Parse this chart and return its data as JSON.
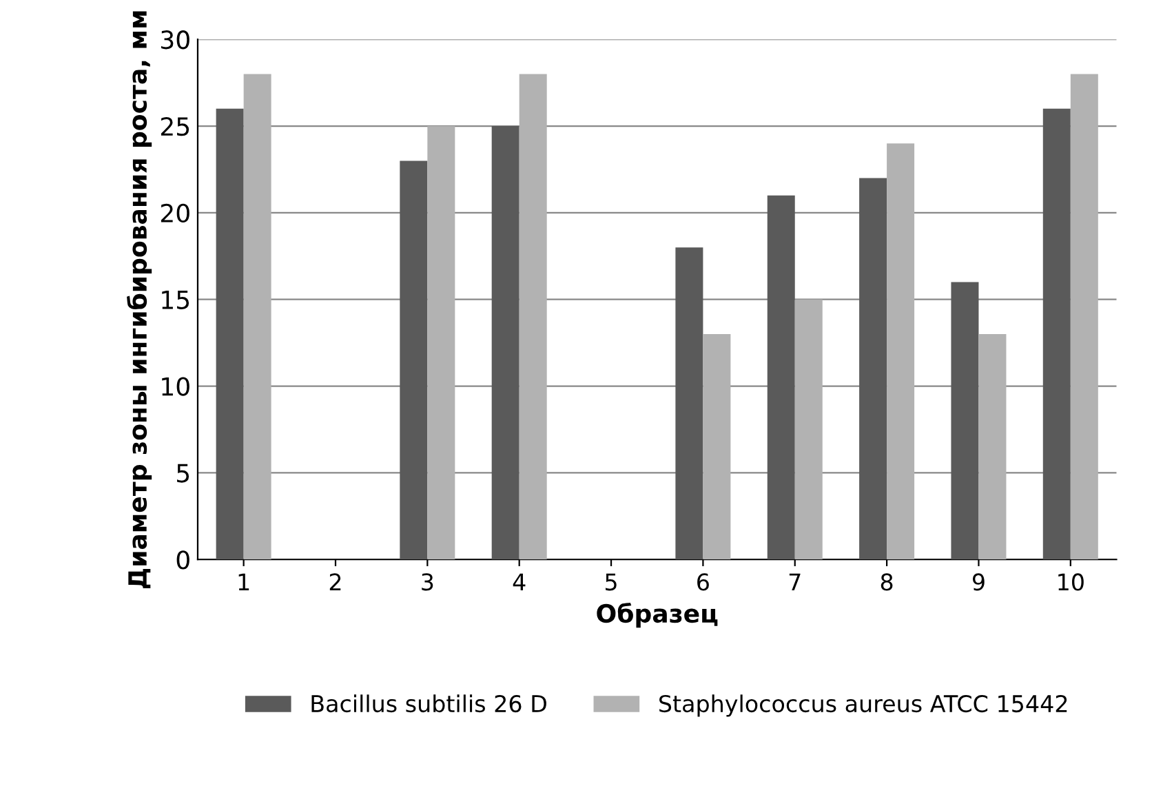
{
  "chart_data": {
    "type": "bar",
    "xlabel": "Образец",
    "ylabel": "Диаметр зоны ингибирования роста, мм",
    "categories": [
      "1",
      "2",
      "3",
      "4",
      "5",
      "6",
      "7",
      "8",
      "9",
      "10"
    ],
    "series": [
      {
        "name": "Bacillus subtilis 26 D",
        "color": "#5a5a5a",
        "values": [
          26,
          null,
          23,
          25,
          null,
          18,
          21,
          22,
          16,
          26
        ]
      },
      {
        "name": "Staphylococcus aureus ATCC 15442",
        "color": "#b2b2b2",
        "values": [
          28,
          null,
          25,
          28,
          null,
          13,
          15,
          24,
          13,
          28
        ]
      }
    ],
    "ylim": [
      0,
      30
    ],
    "yticks": [
      0,
      5,
      10,
      15,
      20,
      25,
      30
    ],
    "grid": "y",
    "legend": "bottom"
  }
}
